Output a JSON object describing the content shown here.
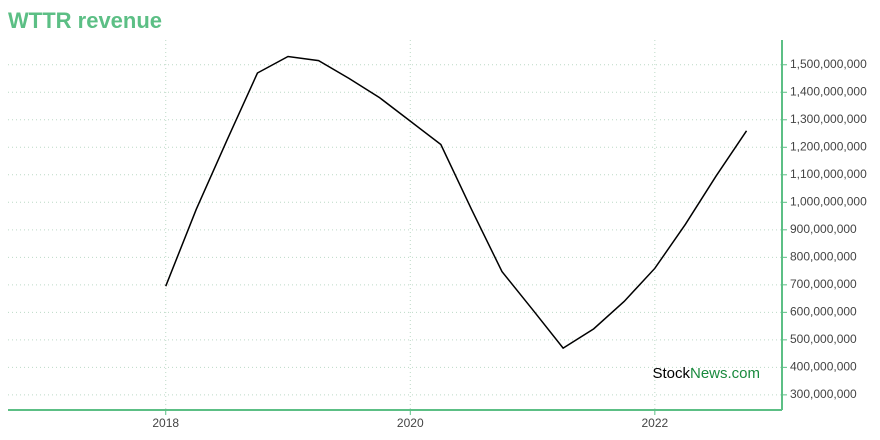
{
  "chart_data": {
    "type": "line",
    "title": "WTTR revenue",
    "x": [
      2018,
      2018.25,
      2018.5,
      2018.75,
      2019,
      2019.25,
      2019.5,
      2019.75,
      2020,
      2020.25,
      2020.5,
      2020.75,
      2021,
      2021.25,
      2021.5,
      2021.75,
      2022,
      2022.25,
      2022.5,
      2022.75
    ],
    "series": [
      {
        "color": "#000000",
        "values": [
          695000000,
          975000000,
          1225000000,
          1470000000,
          1530000000,
          1515000000,
          1450000000,
          1380000000,
          1295000000,
          1210000000,
          975000000,
          748000000,
          610000000,
          470000000,
          540000000,
          640000000,
          760000000,
          920000000,
          1095000000,
          1260000000
        ]
      }
    ],
    "xlim": [
      2016.71,
      2023.04
    ],
    "xticks": [
      2018,
      2020,
      2022
    ],
    "ylim": [
      245000000,
      1590000000
    ],
    "yticks": [
      {
        "value": 300000000,
        "label": "300,000,000"
      },
      {
        "value": 400000000,
        "label": "400,000,000"
      },
      {
        "value": 500000000,
        "label": "500,000,000"
      },
      {
        "value": 600000000,
        "label": "600,000,000"
      },
      {
        "value": 700000000,
        "label": "700,000,000"
      },
      {
        "value": 800000000,
        "label": "800,000,000"
      },
      {
        "value": 900000000,
        "label": "900,000,000"
      },
      {
        "value": 1000000000,
        "label": "1,000,000,000"
      },
      {
        "value": 1100000000,
        "label": "1,100,000,000"
      },
      {
        "value": 1200000000,
        "label": "1,200,000,000"
      },
      {
        "value": 1300000000,
        "label": "1,300,000,000"
      },
      {
        "value": 1400000000,
        "label": "1,400,000,000"
      },
      {
        "value": 1500000000,
        "label": "1,500,000,000"
      }
    ],
    "grid": true,
    "axis_color": "#5cbf85",
    "watermark": [
      "Stock",
      "News.com"
    ]
  }
}
